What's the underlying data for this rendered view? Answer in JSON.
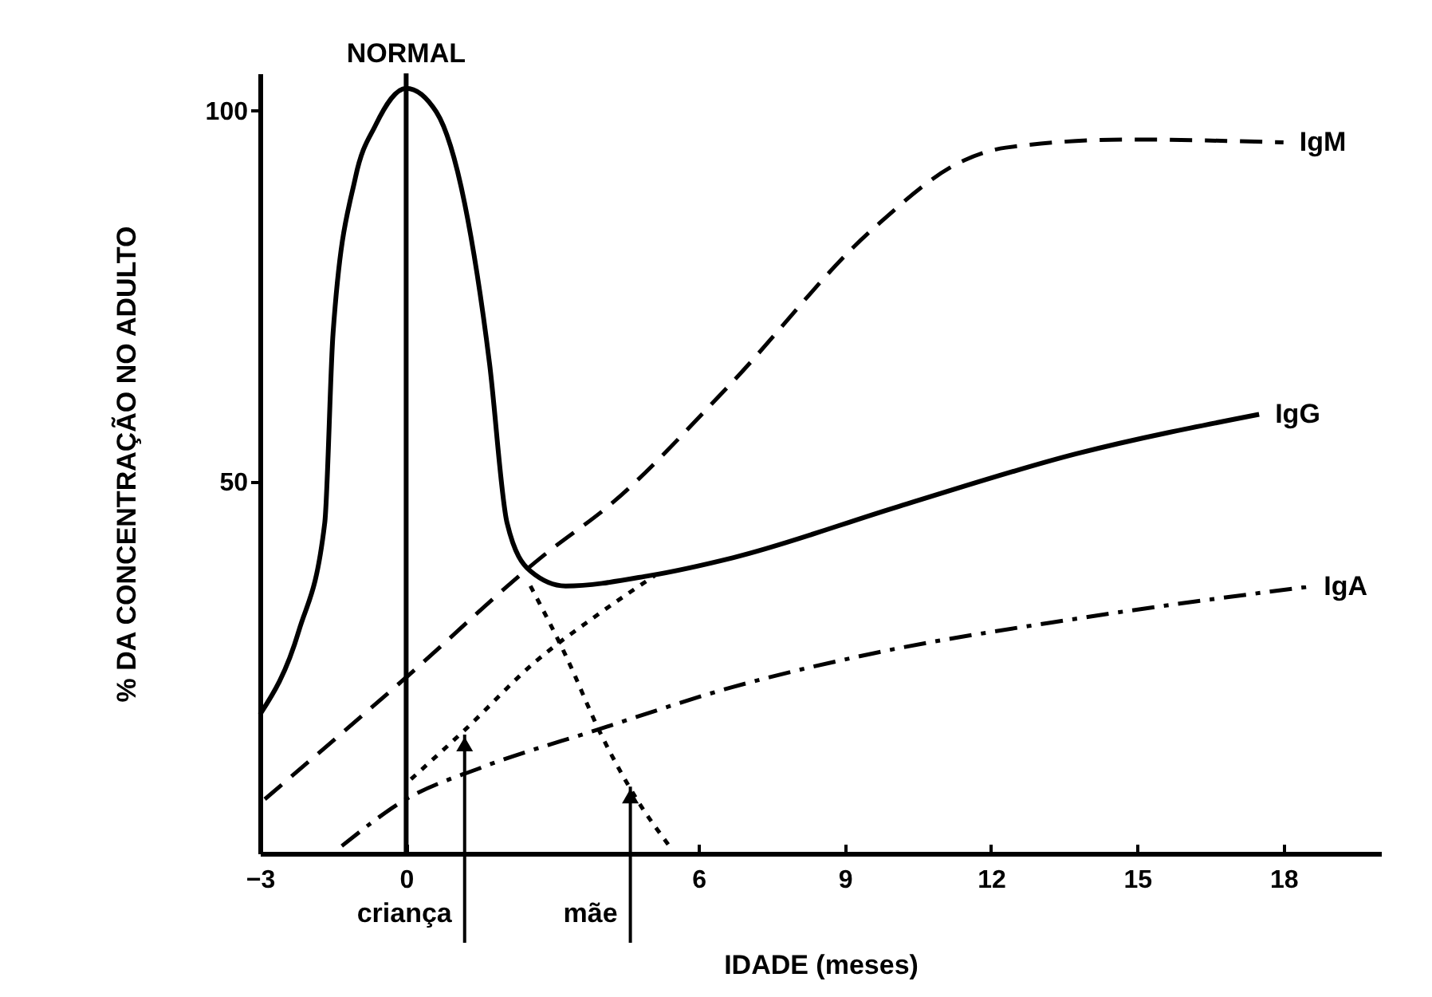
{
  "chart_data": {
    "type": "line",
    "xlabel": "IDADE (meses)",
    "ylabel": "% DA CONCENTRAÇÃO NO ADULTO",
    "xlim": [
      -3,
      20
    ],
    "ylim": [
      0,
      105
    ],
    "xticks": [
      -3,
      0,
      6,
      9,
      12,
      15,
      18
    ],
    "yticks": [
      50,
      100
    ],
    "grid": false,
    "legend": false,
    "marker": "none",
    "series": [
      {
        "name": "IgM",
        "color": "#000000",
        "line_style": "dashed",
        "x": [
          -2.9,
          0,
          2.8,
          4.25,
          6.6,
          9.55,
          11.45,
          12.3,
          14.8,
          18
        ],
        "values": [
          7.3,
          23.7,
          40,
          47.3,
          62.8,
          83.9,
          93.3,
          95,
          96.1,
          95.7
        ]
      },
      {
        "name": "IgG",
        "color": "#000000",
        "line_style": "solid",
        "x": [
          -3,
          -2.2,
          -1.67,
          -1.5,
          -1.04,
          -0.63,
          0,
          0.62,
          1.2,
          1.71,
          2.07,
          2.55,
          3.27,
          5,
          6.7,
          10.1,
          13.75,
          17.5
        ],
        "values": [
          18.7,
          30,
          44.5,
          70,
          91,
          98,
          103,
          99.8,
          87.5,
          66,
          44.5,
          38,
          36,
          37.4,
          39.8,
          46.7,
          53.8,
          59.1
        ]
      },
      {
        "name": "IgA",
        "color": "#000000",
        "line_style": "dashdot",
        "x": [
          -1.32,
          0,
          1.56,
          3.9,
          6.7,
          9.56,
          13.75,
          18.5
        ],
        "values": [
          1,
          7.3,
          11.6,
          16.6,
          22.4,
          26.9,
          31.6,
          35.9
        ]
      },
      {
        "color": "#000000",
        "line_style": "dotted",
        "x": [
          2.55,
          3.27,
          4,
          4.73,
          5.4
        ],
        "values": [
          36,
          26.7,
          16,
          7.3,
          1
        ]
      },
      {
        "color": "#000000",
        "line_style": "dotted",
        "x": [
          0.1,
          1.2,
          2.65,
          3.9,
          5.1
        ],
        "values": [
          10,
          16.6,
          25.8,
          32,
          37.4
        ]
      }
    ],
    "ref_lines": [
      {
        "axis": "x",
        "value": 0,
        "label": "NORMAL",
        "color": "#000000"
      }
    ],
    "annotations": [
      {
        "text": "criança",
        "x": 1.2,
        "y": 16
      },
      {
        "text": "mãe",
        "x": 4.6,
        "y": 9
      }
    ]
  }
}
